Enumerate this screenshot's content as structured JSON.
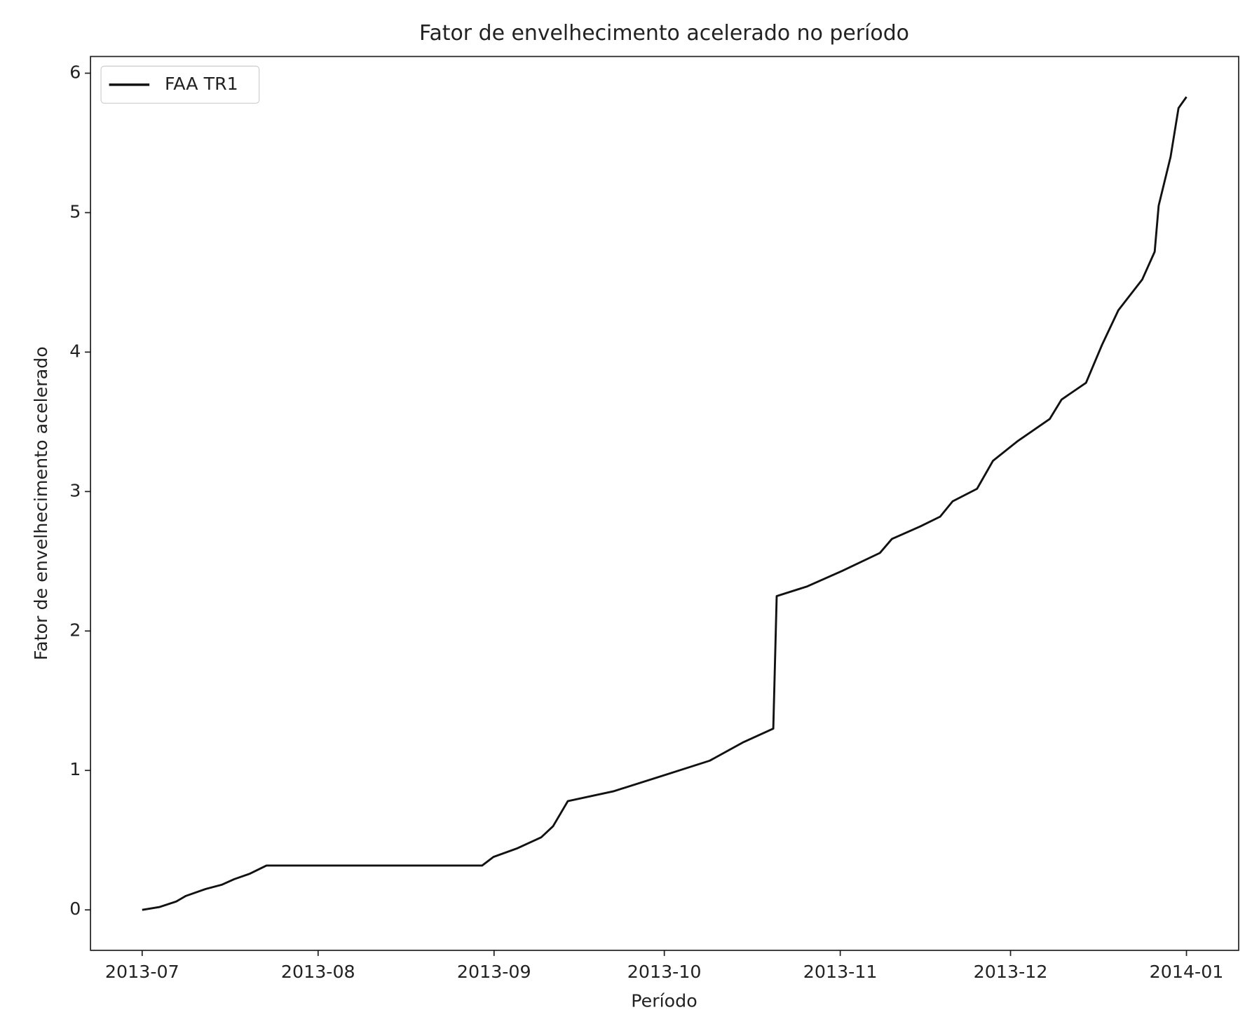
{
  "chart_data": {
    "type": "line",
    "title": "Fator de envelhecimento acelerado no período",
    "xlabel": "Período",
    "ylabel": "Fator de envelhecimento acelerado",
    "x": [
      0,
      3,
      6,
      7.7,
      11.2,
      14,
      16.2,
      19,
      21.9,
      59.9,
      61.9,
      66,
      70.3,
      72.4,
      75,
      83,
      92.3,
      100,
      105.8,
      111.2,
      111.8,
      117.2,
      123.3,
      130,
      132.1,
      137.1,
      140.6,
      142.8,
      147.1,
      149.9,
      154.2,
      159.9,
      162,
      166.3,
      169.1,
      172,
      176.2,
      178.4,
      179.1,
      181.2,
      182.6,
      184
    ],
    "series": [
      {
        "name": "FAA TR1",
        "color": "#111111",
        "values": [
          0,
          0.02,
          0.06,
          0.1,
          0.15,
          0.18,
          0.22,
          0.26,
          0.318,
          0.318,
          0.38,
          0.44,
          0.52,
          0.6,
          0.78,
          0.85,
          0.97,
          1.07,
          1.2,
          1.3,
          2.25,
          2.32,
          2.43,
          2.56,
          2.66,
          2.75,
          2.82,
          2.93,
          3.02,
          3.22,
          3.36,
          3.52,
          3.66,
          3.78,
          4.05,
          4.3,
          4.52,
          4.72,
          5.05,
          5.4,
          5.75,
          5.83
        ]
      }
    ],
    "xlim": [
      -9.1,
      193.2
    ],
    "xticks": [
      {
        "value": 0,
        "label": "2013-07"
      },
      {
        "value": 31,
        "label": "2013-08"
      },
      {
        "value": 62,
        "label": "2013-09"
      },
      {
        "value": 92,
        "label": "2013-10"
      },
      {
        "value": 123,
        "label": "2013-11"
      },
      {
        "value": 153,
        "label": "2013-12"
      },
      {
        "value": 184,
        "label": "2014-01"
      }
    ],
    "ylim": [
      -0.29,
      6.12
    ],
    "yticks": [
      0,
      1,
      2,
      3,
      4,
      5,
      6
    ],
    "legend": "upper left"
  }
}
